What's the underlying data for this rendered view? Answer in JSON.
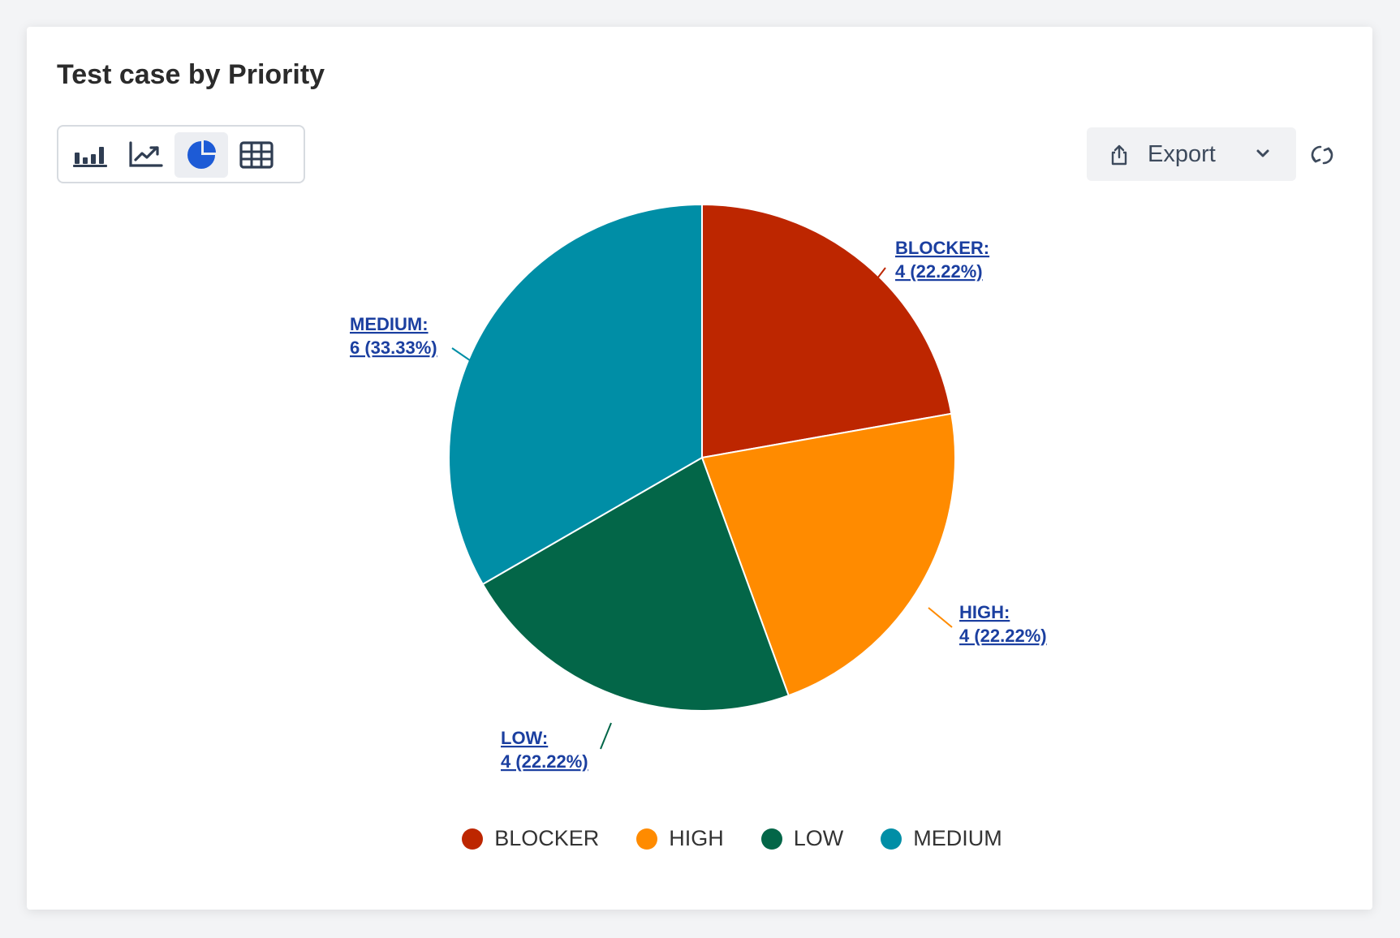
{
  "title": "Test case by Priority",
  "view_switcher": [
    {
      "name": "bar-chart",
      "active": false
    },
    {
      "name": "line-chart",
      "active": false
    },
    {
      "name": "pie-chart",
      "active": true
    },
    {
      "name": "table",
      "active": false
    }
  ],
  "toolbar": {
    "export_label": "Export"
  },
  "colors": {
    "accent": "#1d5bd6",
    "label_link": "#1b3fa0"
  },
  "chart_data": {
    "type": "pie",
    "start": "top",
    "direction": "clockwise",
    "slices": [
      {
        "name": "BLOCKER",
        "value": 4,
        "percent": "22.22%",
        "color": "#bd2600",
        "label_line1": "BLOCKER:",
        "label_line2": "4 (22.22%)"
      },
      {
        "name": "HIGH",
        "value": 4,
        "percent": "22.22%",
        "color": "#ff8b00",
        "label_line1": "HIGH:",
        "label_line2": "4 (22.22%)"
      },
      {
        "name": "LOW",
        "value": 4,
        "percent": "22.22%",
        "color": "#036648",
        "label_line1": "LOW:",
        "label_line2": "4 (22.22%)"
      },
      {
        "name": "MEDIUM",
        "value": 6,
        "percent": "33.33%",
        "color": "#008ea6",
        "label_line1": "MEDIUM:",
        "label_line2": "6 (33.33%)"
      }
    ],
    "legend": [
      "BLOCKER",
      "HIGH",
      "LOW",
      "MEDIUM"
    ],
    "legend_position": "bottom"
  }
}
